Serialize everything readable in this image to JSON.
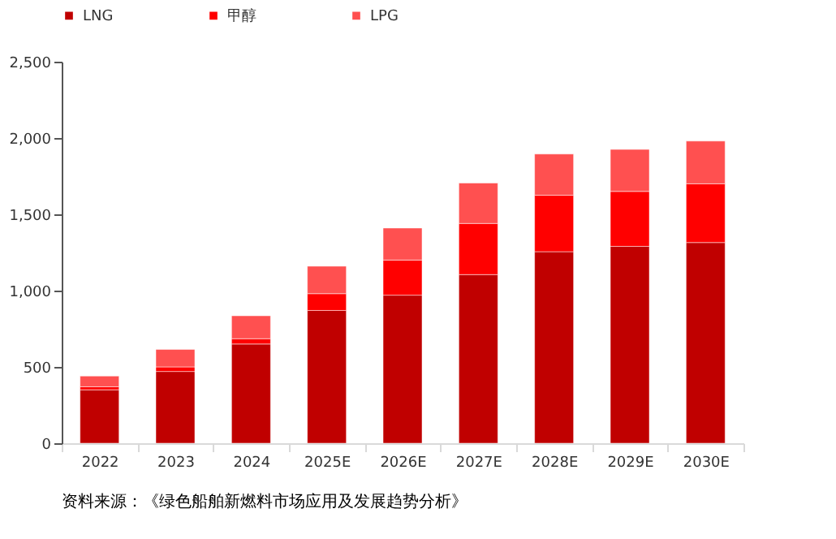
{
  "chart_data": {
    "type": "bar",
    "stacked": true,
    "categories": [
      "2022",
      "2023",
      "2024",
      "2025E",
      "2026E",
      "2027E",
      "2028E",
      "2029E",
      "2030E"
    ],
    "series": [
      {
        "name": "LNG",
        "color": "#c00000",
        "values": [
          350,
          470,
          650,
          870,
          970,
          1105,
          1255,
          1290,
          1315
        ]
      },
      {
        "name": "甲醇",
        "color": "#ff0000",
        "values": [
          20,
          30,
          35,
          110,
          230,
          335,
          370,
          360,
          385
        ]
      },
      {
        "name": "LPG",
        "color": "#ff5050",
        "values": [
          70,
          115,
          150,
          180,
          210,
          265,
          270,
          275,
          280
        ]
      }
    ],
    "ylim": [
      0,
      2500
    ],
    "yticks": [
      0,
      {
        "value": 500,
        "label": "500"
      },
      {
        "value": 1000,
        "label": "1,000"
      },
      {
        "value": 1500,
        "label": "1,500"
      },
      {
        "value": 2000,
        "label": "2,000"
      },
      {
        "value": 2500,
        "label": "2,500"
      }
    ],
    "grid": false,
    "legend": "top",
    "annotations": [
      "资料来源：《绿色船舶新燃料市场应用及发展趋势分析》"
    ]
  }
}
